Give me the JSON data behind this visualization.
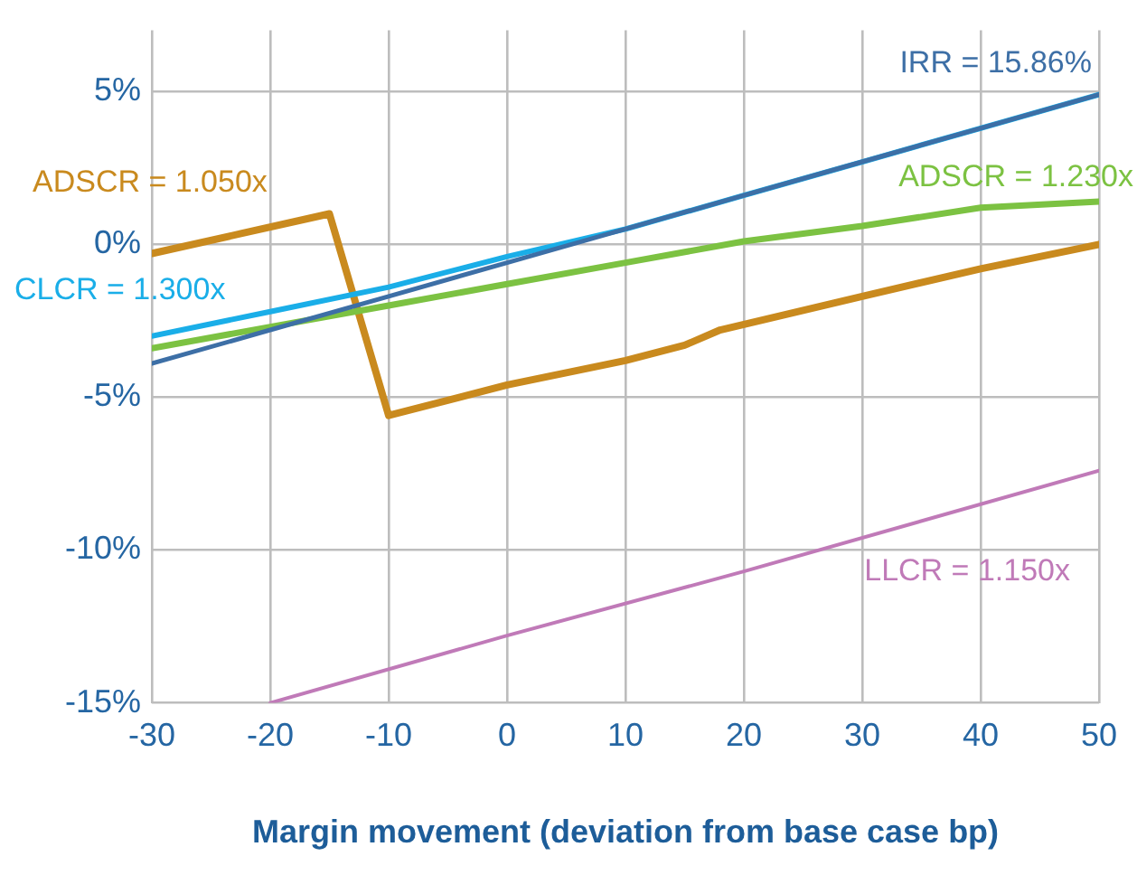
{
  "chart_data": {
    "type": "line",
    "xlabel": "Margin movement (deviation from base case bp)",
    "xlim": [
      -30,
      50
    ],
    "xticks": [
      -30,
      -20,
      -10,
      0,
      10,
      20,
      30,
      40,
      50
    ],
    "ylim": [
      -15,
      7
    ],
    "yticks": [
      {
        "value": 5,
        "label": "5%"
      },
      {
        "value": 0,
        "label": "0%"
      },
      {
        "value": -5,
        "label": "-5%"
      },
      {
        "value": -10,
        "label": "-10%"
      },
      {
        "value": -15,
        "label": "-15%"
      }
    ],
    "grid": true,
    "legend": false,
    "marker": "none",
    "line_style": "solid",
    "series": [
      {
        "name": "ADSCR = 1.050x",
        "color": "#c98a1e",
        "x": [
          -30,
          -15,
          -10,
          0,
          10,
          15,
          18,
          30,
          40,
          50
        ],
        "values": [
          -0.3,
          1.0,
          -5.6,
          -4.6,
          -3.8,
          -3.3,
          -2.8,
          -1.7,
          -0.8,
          0.0
        ]
      },
      {
        "name": "ADSCR = 1.230x",
        "color": "#7cc242",
        "x": [
          -30,
          -20,
          -10,
          0,
          10,
          20,
          30,
          40,
          50
        ],
        "values": [
          -3.4,
          -2.7,
          -2.0,
          -1.3,
          -0.6,
          0.1,
          0.6,
          1.2,
          1.4
        ]
      },
      {
        "name": "CLCR = 1.300x",
        "color": "#1aaee8",
        "x": [
          -30,
          -20,
          -10,
          0,
          10,
          20,
          30,
          40,
          50
        ],
        "values": [
          -3.0,
          -2.2,
          -1.4,
          -0.4,
          0.5,
          1.6,
          2.7,
          3.8,
          4.9
        ]
      },
      {
        "name": "IRR = 15.86%",
        "color": "#3d6fa6",
        "x": [
          -30,
          -20,
          -10,
          0,
          10,
          20,
          30,
          40,
          50
        ],
        "values": [
          -3.9,
          -2.8,
          -1.7,
          -0.6,
          0.5,
          1.6,
          2.7,
          3.8,
          4.9
        ]
      },
      {
        "name": "LLCR = 1.150x",
        "color": "#c07ab8",
        "x": [
          -20,
          0,
          20,
          50
        ],
        "values": [
          -15,
          -12.8,
          -10.7,
          -7.4
        ]
      }
    ]
  }
}
